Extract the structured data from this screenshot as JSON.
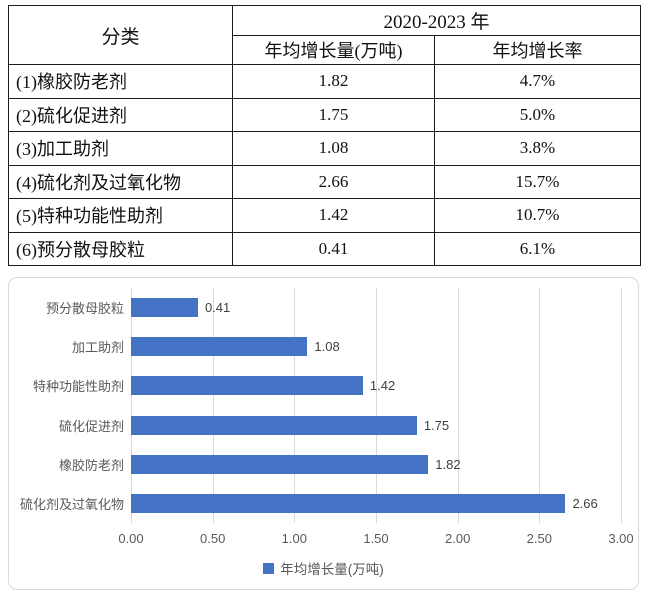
{
  "table": {
    "category_header": "分类",
    "period_header": "2020-2023 年",
    "sub_headers": [
      "年均增长量(万吨)",
      "年均增长率"
    ],
    "rows": [
      {
        "category": "(1)橡胶防老剂",
        "amount": "1.82",
        "rate": "4.7%"
      },
      {
        "category": "(2)硫化促进剂",
        "amount": "1.75",
        "rate": "5.0%"
      },
      {
        "category": "(3)加工助剂",
        "amount": "1.08",
        "rate": "3.8%"
      },
      {
        "category": "(4)硫化剂及过氧化物",
        "amount": "2.66",
        "rate": "15.7%"
      },
      {
        "category": "(5)特种功能性助剂",
        "amount": "1.42",
        "rate": "10.7%"
      },
      {
        "category": "(6)预分散母胶粒",
        "amount": "0.41",
        "rate": "6.1%"
      }
    ]
  },
  "chart_data": {
    "type": "bar",
    "orientation": "horizontal",
    "title": "",
    "xlabel": "",
    "ylabel": "",
    "categories": [
      "预分散母胶粒",
      "加工助剂",
      "特种功能性助剂",
      "硫化促进剂",
      "橡胶防老剂",
      "硫化剂及过氧化物"
    ],
    "values": [
      0.41,
      1.08,
      1.42,
      1.75,
      1.82,
      2.66
    ],
    "data_labels": [
      "0.41",
      "1.08",
      "1.42",
      "1.75",
      "1.82",
      "2.66"
    ],
    "xlim": [
      0,
      3
    ],
    "x_tick_labels": [
      "0.00",
      "0.50",
      "1.00",
      "1.50",
      "2.00",
      "2.50",
      "3.00"
    ],
    "grid": true,
    "legend": "年均增长量(万吨)",
    "legend_position": "bottom",
    "bar_color": "#4472C4",
    "gridline_color": "#D9D9D9",
    "axis_label_color": "#595959",
    "data_label_color": "#404040"
  }
}
